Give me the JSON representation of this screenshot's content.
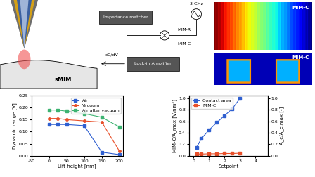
{
  "diagram": {
    "source": "3 GHz",
    "matcher": "Impedance matcher",
    "outputs": [
      "MIM-R",
      "MIM-C"
    ],
    "lockin": "Lock-in Amplifier",
    "lockin_output": "dC/dV",
    "sample": "sMIM"
  },
  "images": [
    {
      "label": "MIM-C"
    },
    {
      "label": "MIM-C"
    }
  ],
  "chart_data": [
    {
      "type": "line",
      "x_label": "Lift height [nm]",
      "y_label": "Dynamic range [V]",
      "xlim": [
        -50,
        210
      ],
      "xticks": [
        -50,
        0,
        50,
        100,
        150,
        200
      ],
      "ylim": [
        0,
        0.25
      ],
      "yticks": [
        {
          "value": 0,
          "label": "0.00"
        },
        {
          "value": 0.05,
          "label": "0.05"
        },
        {
          "value": 0.1,
          "label": "0.10"
        },
        {
          "value": 0.15,
          "label": "0.15"
        },
        {
          "value": 0.2,
          "label": "0.20"
        },
        {
          "value": 0.25,
          "label": "0.25"
        }
      ],
      "legend": "upper right",
      "x": [
        0,
        25,
        50,
        100,
        150,
        200
      ],
      "series": [
        {
          "name": "Air",
          "color": "#2f5fd0",
          "marker": "square",
          "values": [
            0.13,
            0.13,
            0.13,
            0.125,
            0.015,
            0.005
          ]
        },
        {
          "name": "Vacuum",
          "color": "#e8502a",
          "marker": "circle",
          "values": [
            0.155,
            0.155,
            0.15,
            0.145,
            0.14,
            0.02
          ]
        },
        {
          "name": "Air after vacuum",
          "color": "#3cb371",
          "marker": "square",
          "values": [
            0.19,
            0.19,
            0.185,
            0.175,
            0.16,
            0.12
          ]
        }
      ]
    },
    {
      "type": "line",
      "x_label": "Setpoint",
      "y_label": "MIM-C/A_max [V/nm²]",
      "y2_label": "A_c/A_c,max [-]",
      "xlim": [
        -0.3,
        4.8
      ],
      "xticks": [
        0,
        1,
        2,
        3,
        4
      ],
      "ylim": [
        0,
        1.05
      ],
      "yticks": [
        {
          "value": 0,
          "label": "0.0"
        },
        {
          "value": 0.2,
          "label": "0.2"
        },
        {
          "value": 0.4,
          "label": "0.4"
        },
        {
          "value": 0.6,
          "label": "0.6"
        },
        {
          "value": 0.8,
          "label": "0.8"
        },
        {
          "value": 1,
          "label": "1.0"
        }
      ],
      "y2lim": [
        0,
        1.05
      ],
      "y2ticks": [
        {
          "value": 0,
          "label": "0.0"
        },
        {
          "value": 0.2,
          "label": "0.2"
        },
        {
          "value": 0.4,
          "label": "0.4"
        },
        {
          "value": 0.6,
          "label": "0.6"
        },
        {
          "value": 0.8,
          "label": "0.8"
        },
        {
          "value": 1,
          "label": "1.0"
        }
      ],
      "legend": "upper left",
      "x": [
        0.2,
        0.5,
        1.0,
        1.5,
        2.0,
        2.5,
        3.0
      ],
      "series": [
        {
          "name": "Contact area",
          "color": "#2f5fd0",
          "marker": "square",
          "axis": "y2",
          "values": [
            0.15,
            0.3,
            0.45,
            0.58,
            0.7,
            0.82,
            1.0
          ]
        },
        {
          "name": "MIM-C",
          "color": "#e8502a",
          "marker": "square",
          "axis": "y",
          "values": [
            0.03,
            0.03,
            0.035,
            0.035,
            0.04,
            0.04,
            0.045
          ]
        }
      ]
    }
  ]
}
